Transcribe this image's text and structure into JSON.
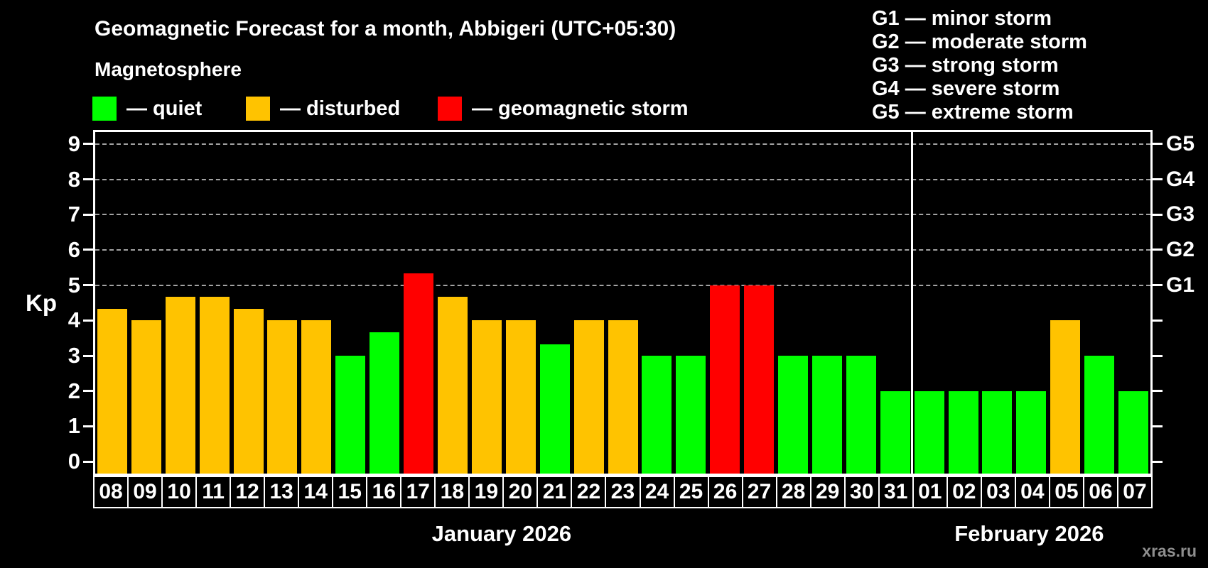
{
  "header": {
    "title": "Geomagnetic Forecast for a month, Abbigeri (UTC+05:30)",
    "subtitle": "Magnetosphere"
  },
  "legend": {
    "items": [
      {
        "key": "quiet",
        "label": "— quiet",
        "color": "#00ff00"
      },
      {
        "key": "disturbed",
        "label": "— disturbed",
        "color": "#ffc300"
      },
      {
        "key": "storm",
        "label": "— geomagnetic storm",
        "color": "#ff0000"
      }
    ]
  },
  "g_legend": {
    "items": [
      "G1 — minor storm",
      "G2 — moderate storm",
      "G3 — strong storm",
      "G4 — severe storm",
      "G5 — extreme storm"
    ]
  },
  "watermark": "xras.ru",
  "chart_data": {
    "type": "bar",
    "title": "Geomagnetic Forecast for a month, Abbigeri (UTC+05:30)",
    "subtitle": "Magnetosphere",
    "ylabel": "Kp",
    "ylim": [
      -0.34,
      9.34
    ],
    "yticks": [
      0,
      1,
      2,
      3,
      4,
      5,
      6,
      7,
      8,
      9
    ],
    "gridlines_at": [
      5,
      6,
      7,
      8,
      9
    ],
    "grid": true,
    "right_axis": [
      {
        "kp": 5,
        "label": "G1"
      },
      {
        "kp": 6,
        "label": "G2"
      },
      {
        "kp": 7,
        "label": "G3"
      },
      {
        "kp": 8,
        "label": "G4"
      },
      {
        "kp": 9,
        "label": "G5"
      }
    ],
    "months": [
      {
        "key": "jan",
        "label": "January 2026",
        "start_index": 0,
        "days": 24
      },
      {
        "key": "feb",
        "label": "February 2026",
        "start_index": 24,
        "days": 7
      }
    ],
    "categories": [
      "08",
      "09",
      "10",
      "11",
      "12",
      "13",
      "14",
      "15",
      "16",
      "17",
      "18",
      "19",
      "20",
      "21",
      "22",
      "23",
      "24",
      "25",
      "26",
      "27",
      "28",
      "29",
      "30",
      "31",
      "01",
      "02",
      "03",
      "04",
      "05",
      "06",
      "07"
    ],
    "series": [
      {
        "name": "Kp forecast",
        "values": [
          4.33,
          4,
          4.67,
          4.67,
          4.33,
          4,
          4,
          3,
          3.67,
          5.33,
          4.67,
          4,
          4,
          3.33,
          4,
          4,
          3,
          3,
          5,
          5,
          3,
          3,
          3,
          2,
          2,
          2,
          2,
          2,
          4,
          3,
          2
        ],
        "states": [
          "disturbed",
          "disturbed",
          "disturbed",
          "disturbed",
          "disturbed",
          "disturbed",
          "disturbed",
          "quiet",
          "quiet",
          "storm",
          "disturbed",
          "disturbed",
          "disturbed",
          "quiet",
          "disturbed",
          "disturbed",
          "quiet",
          "quiet",
          "storm",
          "storm",
          "quiet",
          "quiet",
          "quiet",
          "quiet",
          "quiet",
          "quiet",
          "quiet",
          "quiet",
          "disturbed",
          "quiet",
          "quiet"
        ]
      }
    ],
    "colors": {
      "quiet": "#00ff00",
      "disturbed": "#ffc300",
      "storm": "#ff0000"
    },
    "legend_position": "top-left"
  },
  "style": {
    "background": "#000000",
    "axis_color": "#ffffff",
    "grid_color": "#a3a3a3",
    "text_color": "#ffffff",
    "watermark_color": "#8f8f8f"
  }
}
